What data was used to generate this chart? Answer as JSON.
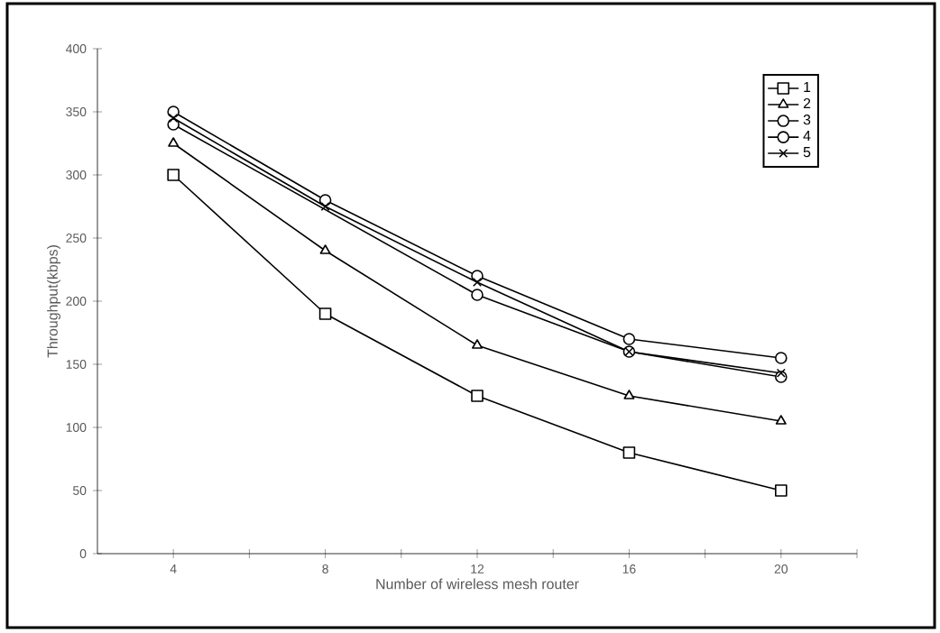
{
  "chart_data": {
    "type": "line",
    "xlabel": "Number of wireless mesh router",
    "ylabel": "Throughput(kbps)",
    "x": [
      4,
      8,
      12,
      16,
      20
    ],
    "xlim": [
      2,
      22
    ],
    "xticks": [
      4,
      {
        "value": 6,
        "label": null
      },
      8,
      {
        "value": 10,
        "label": null
      },
      12,
      {
        "value": 14,
        "label": null
      },
      16,
      {
        "value": 18,
        "label": null
      },
      20,
      {
        "value": 22,
        "label": null
      }
    ],
    "ylim": [
      0,
      400
    ],
    "yticks": [
      0,
      50,
      100,
      150,
      200,
      250,
      300,
      350,
      400
    ],
    "grid": false,
    "legend": "top right",
    "line_style": "solid",
    "series": [
      {
        "name": "1",
        "color": "#000000",
        "marker": "square",
        "values": [
          300,
          190,
          125,
          80,
          50
        ]
      },
      {
        "name": "2",
        "color": "#000000",
        "marker": "triangle",
        "values": [
          325,
          240,
          165,
          125,
          105
        ]
      },
      {
        "name": "3",
        "color": "#000000",
        "marker": "circle",
        "values": [
          340,
          null,
          205,
          160,
          140
        ]
      },
      {
        "name": "4",
        "color": "#000000",
        "marker": "circle",
        "values": [
          350,
          280,
          220,
          170,
          155
        ]
      },
      {
        "name": "5",
        "color": "#000000",
        "marker": "cross",
        "values": [
          345,
          275,
          215,
          160,
          143
        ]
      }
    ]
  }
}
